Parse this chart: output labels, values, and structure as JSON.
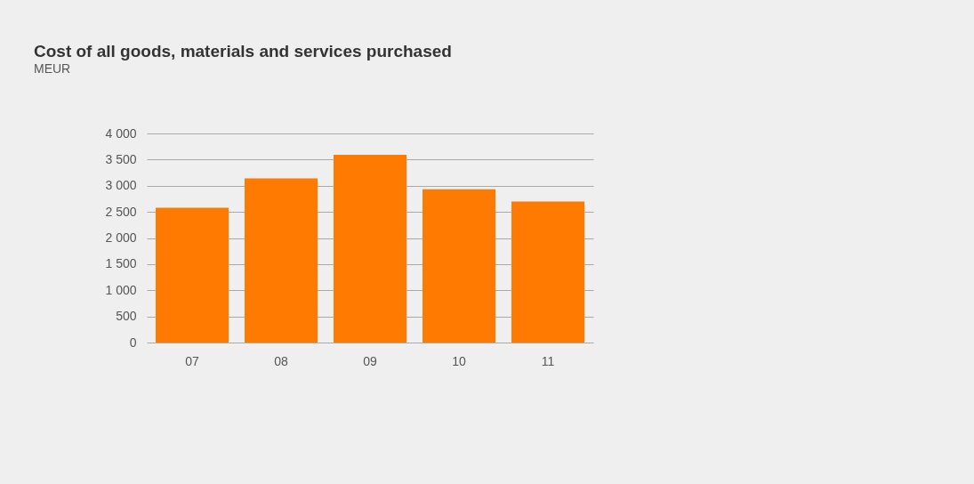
{
  "chart_data": {
    "type": "bar",
    "title": "Cost of all goods, materials and services purchased",
    "subtitle": "MEUR",
    "categories": [
      "07",
      "08",
      "09",
      "10",
      "11"
    ],
    "values": [
      2580,
      3140,
      3590,
      2930,
      2700
    ],
    "color": "#ff7a00",
    "ylim": [
      0,
      4000
    ],
    "yticks": [
      {
        "value": 0,
        "label": "0"
      },
      {
        "value": 500,
        "label": "500"
      },
      {
        "value": 1000,
        "label": "1 000"
      },
      {
        "value": 1500,
        "label": "1 500"
      },
      {
        "value": 2000,
        "label": "2 000"
      },
      {
        "value": 2500,
        "label": "2 500"
      },
      {
        "value": 3000,
        "label": "3 000"
      },
      {
        "value": 3500,
        "label": "3 500"
      },
      {
        "value": 4000,
        "label": "4 000"
      }
    ],
    "grid": "y"
  }
}
